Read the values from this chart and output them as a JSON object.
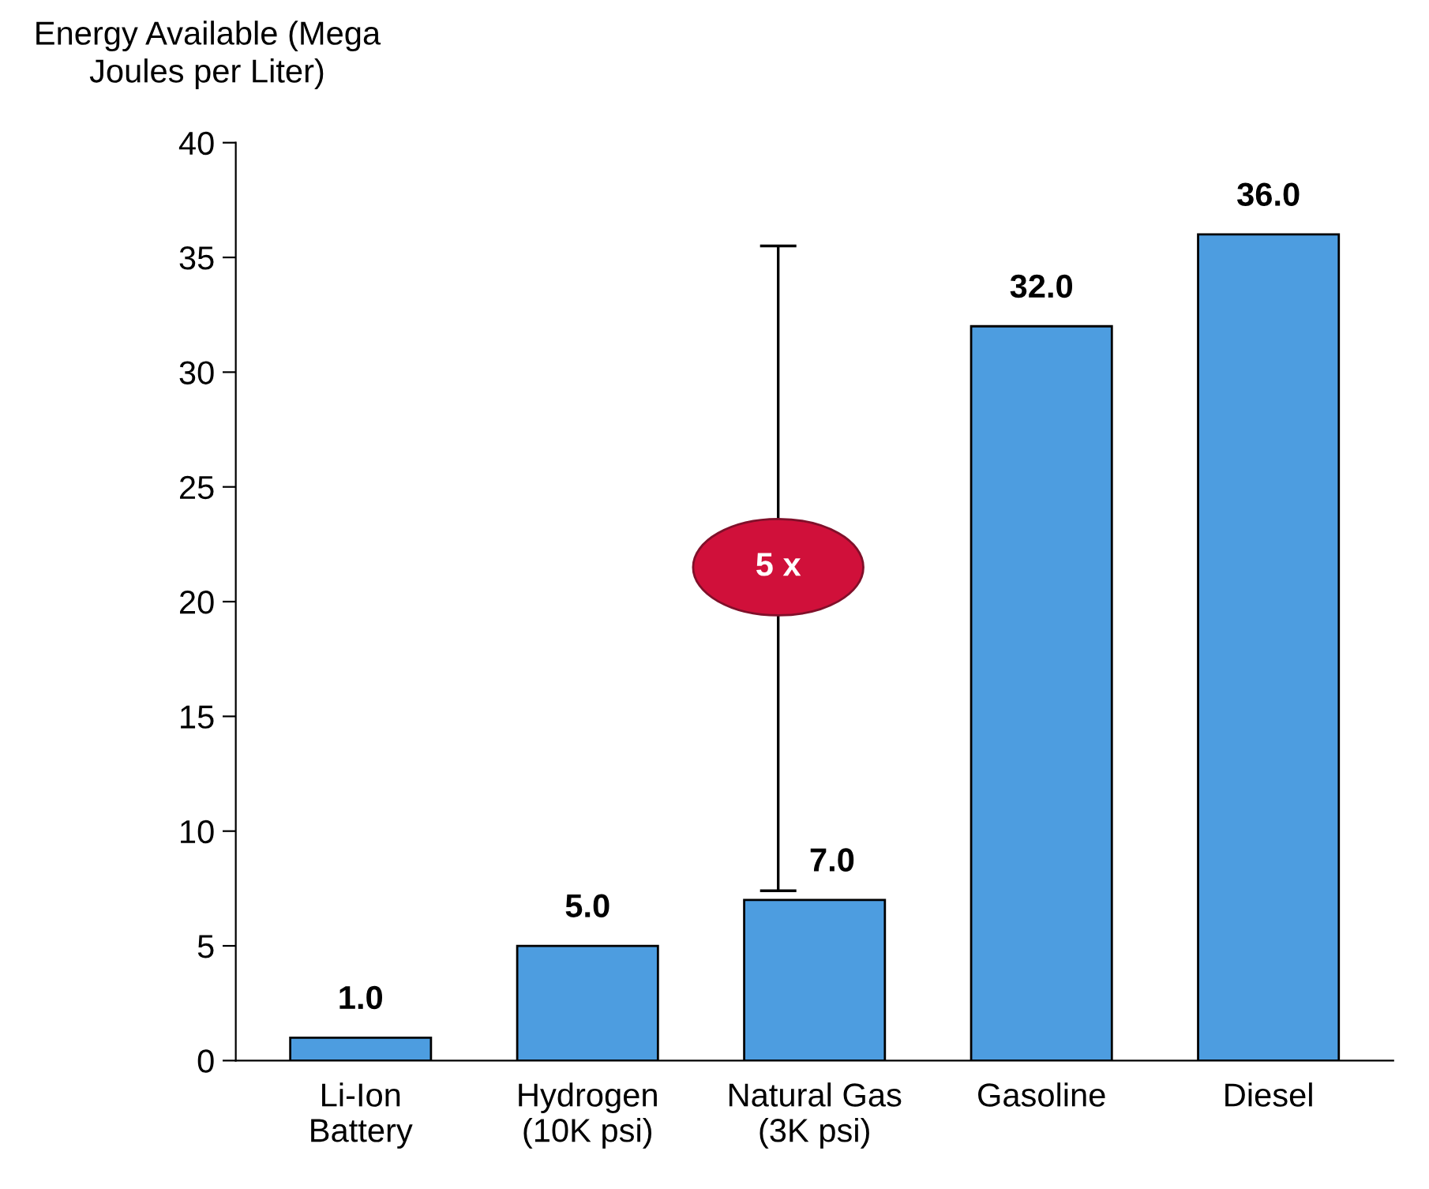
{
  "chart_data": {
    "type": "bar",
    "ylabel": "Energy Available (Mega\nJoules per Liter)",
    "categories": [
      "Li-Ion\nBattery",
      "Hydrogen\n(10K psi)",
      "Natural Gas\n(3K psi)",
      "Gasoline",
      "Diesel"
    ],
    "values": [
      1.0,
      5.0,
      7.0,
      32.0,
      36.0
    ],
    "value_labels": [
      "1.0",
      "5.0",
      "7.0",
      "32.0",
      "36.0"
    ],
    "color": "#4d9de0",
    "ylim": [
      0,
      40
    ],
    "yticks": [
      0,
      5,
      10,
      15,
      20,
      25,
      30,
      35,
      40
    ],
    "grid": false,
    "legend": false,
    "annotations": [
      "5 x"
    ]
  }
}
